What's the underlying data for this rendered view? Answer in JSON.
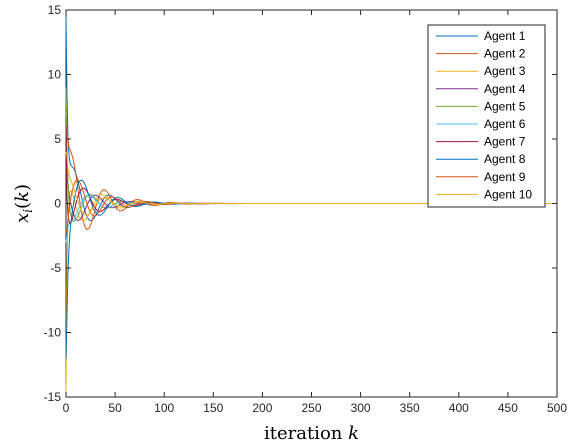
{
  "chart_data": {
    "type": "line",
    "title": "",
    "xlabel": "iteration k",
    "xlabel_parts": {
      "text": "iteration ",
      "var": "k"
    },
    "ylabel": "x_i(k)",
    "ylabel_parts": {
      "var": "x",
      "sub": "i",
      "open": "(",
      "arg": "k",
      "close": ")"
    },
    "xlim": [
      0,
      500
    ],
    "ylim": [
      -15,
      15
    ],
    "xticks": [
      0,
      50,
      100,
      150,
      200,
      250,
      300,
      350,
      400,
      450,
      500
    ],
    "yticks": [
      -15,
      -10,
      -5,
      0,
      5,
      10,
      15
    ],
    "grid": false,
    "legend": "top-right",
    "series": [
      {
        "name": "Agent 1",
        "color": "#0072BD",
        "x0": 14.5,
        "amp": 3.6,
        "period": 37,
        "phase": 0.2,
        "tau": 26
      },
      {
        "name": "Agent 2",
        "color": "#D95319",
        "x0": 7.0,
        "amp": 4.6,
        "period": 34,
        "phase": 0.5,
        "tau": 27
      },
      {
        "name": "Agent 3",
        "color": "#EDB120",
        "x0": -15.0,
        "amp": 2.6,
        "period": 38,
        "phase": 1.6,
        "tau": 28
      },
      {
        "name": "Agent 4",
        "color": "#7E2F8E",
        "x0": 2.0,
        "amp": 2.2,
        "period": 35,
        "phase": 2.3,
        "tau": 25
      },
      {
        "name": "Agent 5",
        "color": "#77AC30",
        "x0": 9.0,
        "amp": 2.0,
        "period": 33,
        "phase": 3.0,
        "tau": 24
      },
      {
        "name": "Agent 6",
        "color": "#4DBEEE",
        "x0": -3.0,
        "amp": 1.7,
        "period": 36,
        "phase": 3.6,
        "tau": 25
      },
      {
        "name": "Agent 7",
        "color": "#A2142F",
        "x0": 6.0,
        "amp": 2.4,
        "period": 34,
        "phase": 4.4,
        "tau": 26
      },
      {
        "name": "Agent 8",
        "color": "#0072BD",
        "x0": -12.0,
        "amp": 3.3,
        "period": 37,
        "phase": 5.0,
        "tau": 27
      },
      {
        "name": "Agent 9",
        "color": "#D95319",
        "x0": -2.0,
        "amp": 2.8,
        "period": 35,
        "phase": 5.6,
        "tau": 28
      },
      {
        "name": "Agent 10",
        "color": "#EDB120",
        "x0": 4.0,
        "amp": 2.1,
        "period": 36,
        "phase": 0.9,
        "tau": 25
      }
    ]
  }
}
